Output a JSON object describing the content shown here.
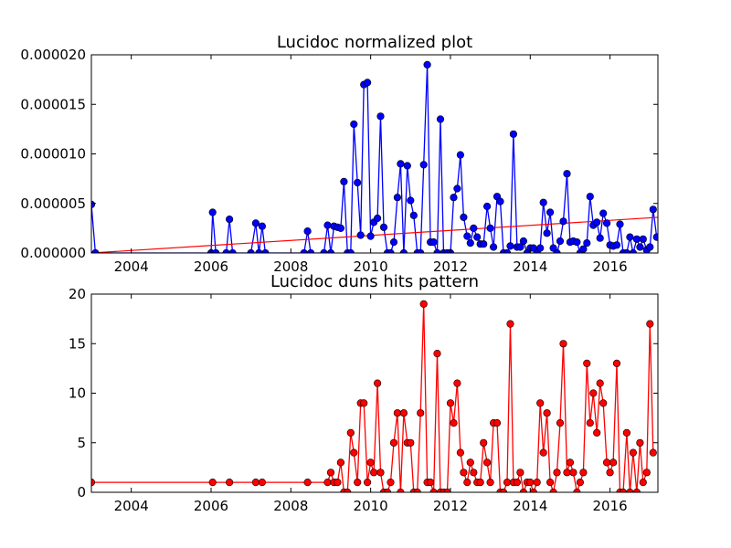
{
  "chart_data": [
    {
      "type": "line",
      "title": "Lucidoc normalized plot",
      "xlabel": "",
      "ylabel": "",
      "xlim": [
        2003.0,
        2017.2
      ],
      "ylim": [
        0,
        2e-05
      ],
      "x_ticks": [
        2004,
        2006,
        2008,
        2010,
        2012,
        2014,
        2016
      ],
      "x_tick_labels": [
        "2004",
        "2006",
        "2008",
        "2010",
        "2012",
        "2014",
        "2016"
      ],
      "y_ticks": [
        0,
        5e-06,
        1e-05,
        1.5e-05,
        2e-05
      ],
      "y_tick_labels": [
        "0.000000",
        "0.000005",
        "0.000010",
        "0.000015",
        "0.000020"
      ],
      "grid": false,
      "colors": {
        "line": "#0000ff",
        "marker": "#0000ff",
        "trend": "#ff0000"
      },
      "trend_line": {
        "x": [
          2003.0,
          2017.2
        ],
        "y": [
          0.0,
          3.6e-06
        ]
      },
      "series": [
        {
          "points": [
            [
              2003.0,
              4.9e-06
            ],
            [
              2003.1,
              0
            ],
            [
              2006.0,
              0
            ],
            [
              2006.04,
              4.1e-06
            ],
            [
              2006.12,
              0
            ],
            [
              2006.38,
              0
            ],
            [
              2006.46,
              3.4e-06
            ],
            [
              2006.54,
              0
            ],
            [
              2007.0,
              0
            ],
            [
              2007.12,
              3e-06
            ],
            [
              2007.2,
              0
            ],
            [
              2007.28,
              2.7e-06
            ],
            [
              2007.36,
              0
            ],
            [
              2008.33,
              0
            ],
            [
              2008.42,
              2.2e-06
            ],
            [
              2008.5,
              0
            ],
            [
              2008.83,
              0
            ],
            [
              2008.92,
              2.8e-06
            ],
            [
              2009.0,
              0
            ],
            [
              2009.08,
              2.7e-06
            ],
            [
              2009.17,
              2.6e-06
            ],
            [
              2009.25,
              2.5e-06
            ],
            [
              2009.33,
              7.2e-06
            ],
            [
              2009.42,
              0
            ],
            [
              2009.5,
              0
            ],
            [
              2009.58,
              1.3e-05
            ],
            [
              2009.67,
              7.1e-06
            ],
            [
              2009.75,
              1.8e-06
            ],
            [
              2009.83,
              1.7e-05
            ],
            [
              2009.92,
              1.72e-05
            ],
            [
              2010.0,
              1.7e-06
            ],
            [
              2010.08,
              3.1e-06
            ],
            [
              2010.17,
              3.5e-06
            ],
            [
              2010.25,
              1.38e-05
            ],
            [
              2010.33,
              2.6e-06
            ],
            [
              2010.42,
              0
            ],
            [
              2010.5,
              0
            ],
            [
              2010.58,
              1.1e-06
            ],
            [
              2010.67,
              5.6e-06
            ],
            [
              2010.75,
              9e-06
            ],
            [
              2010.83,
              0
            ],
            [
              2010.92,
              8.8e-06
            ],
            [
              2011.0,
              5.3e-06
            ],
            [
              2011.08,
              3.8e-06
            ],
            [
              2011.17,
              0
            ],
            [
              2011.25,
              0
            ],
            [
              2011.33,
              8.9e-06
            ],
            [
              2011.42,
              1.9e-05
            ],
            [
              2011.5,
              1.1e-06
            ],
            [
              2011.58,
              1.1e-06
            ],
            [
              2011.67,
              0
            ],
            [
              2011.75,
              1.35e-05
            ],
            [
              2011.83,
              0
            ],
            [
              2011.92,
              0
            ],
            [
              2012.0,
              0
            ],
            [
              2012.08,
              5.6e-06
            ],
            [
              2012.17,
              6.5e-06
            ],
            [
              2012.25,
              9.9e-06
            ],
            [
              2012.33,
              3.6e-06
            ],
            [
              2012.42,
              1.7e-06
            ],
            [
              2012.5,
              1e-06
            ],
            [
              2012.58,
              2.5e-06
            ],
            [
              2012.67,
              1.6e-06
            ],
            [
              2012.75,
              9e-07
            ],
            [
              2012.83,
              9e-07
            ],
            [
              2012.92,
              4.7e-06
            ],
            [
              2013.0,
              2.5e-06
            ],
            [
              2013.08,
              6e-07
            ],
            [
              2013.17,
              5.7e-06
            ],
            [
              2013.25,
              5.2e-06
            ],
            [
              2013.33,
              0
            ],
            [
              2013.42,
              0
            ],
            [
              2013.5,
              7e-07
            ],
            [
              2013.58,
              1.2e-05
            ],
            [
              2013.67,
              6e-07
            ],
            [
              2013.75,
              6e-07
            ],
            [
              2013.83,
              1.2e-06
            ],
            [
              2013.92,
              0
            ],
            [
              2014.0,
              5e-07
            ],
            [
              2014.08,
              5e-07
            ],
            [
              2014.17,
              0
            ],
            [
              2014.25,
              5e-07
            ],
            [
              2014.33,
              5.1e-06
            ],
            [
              2014.42,
              2e-06
            ],
            [
              2014.5,
              4.1e-06
            ],
            [
              2014.58,
              5e-07
            ],
            [
              2014.67,
              0
            ],
            [
              2014.75,
              1.2e-06
            ],
            [
              2014.83,
              3.2e-06
            ],
            [
              2014.92,
              8e-06
            ],
            [
              2015.0,
              1.1e-06
            ],
            [
              2015.08,
              1.2e-06
            ],
            [
              2015.17,
              1.1e-06
            ],
            [
              2015.25,
              0
            ],
            [
              2015.33,
              4e-07
            ],
            [
              2015.42,
              1e-06
            ],
            [
              2015.5,
              5.7e-06
            ],
            [
              2015.58,
              2.8e-06
            ],
            [
              2015.67,
              3.1e-06
            ],
            [
              2015.75,
              1.5e-06
            ],
            [
              2015.83,
              4e-06
            ],
            [
              2015.92,
              3e-06
            ],
            [
              2016.0,
              8e-07
            ],
            [
              2016.08,
              7e-07
            ],
            [
              2016.17,
              8e-07
            ],
            [
              2016.25,
              2.9e-06
            ],
            [
              2016.33,
              0
            ],
            [
              2016.42,
              0
            ],
            [
              2016.5,
              1.6e-06
            ],
            [
              2016.58,
              0
            ],
            [
              2016.67,
              1.4e-06
            ],
            [
              2016.75,
              6e-07
            ],
            [
              2016.83,
              1.4e-06
            ],
            [
              2016.92,
              3e-07
            ],
            [
              2017.0,
              6e-07
            ],
            [
              2017.08,
              4.4e-06
            ],
            [
              2017.17,
              1.6e-06
            ]
          ]
        }
      ]
    },
    {
      "type": "line",
      "title": "Lucidoc duns hits pattern",
      "xlabel": "",
      "ylabel": "",
      "xlim": [
        2003.0,
        2017.2
      ],
      "ylim": [
        0,
        20
      ],
      "x_ticks": [
        2004,
        2006,
        2008,
        2010,
        2012,
        2014,
        2016
      ],
      "x_tick_labels": [
        "2004",
        "2006",
        "2008",
        "2010",
        "2012",
        "2014",
        "2016"
      ],
      "y_ticks": [
        0,
        5,
        10,
        15,
        20
      ],
      "y_tick_labels": [
        "0",
        "5",
        "10",
        "15",
        "20"
      ],
      "grid": false,
      "colors": {
        "line": "#ff0000",
        "marker": "#ff0000"
      },
      "series": [
        {
          "points": [
            [
              2003.0,
              1
            ],
            [
              2006.04,
              1
            ],
            [
              2006.46,
              1
            ],
            [
              2007.12,
              1
            ],
            [
              2007.28,
              1
            ],
            [
              2008.42,
              1
            ],
            [
              2008.92,
              1
            ],
            [
              2009.0,
              2
            ],
            [
              2009.08,
              1
            ],
            [
              2009.17,
              1
            ],
            [
              2009.25,
              3
            ],
            [
              2009.33,
              0
            ],
            [
              2009.42,
              0
            ],
            [
              2009.5,
              6
            ],
            [
              2009.58,
              4
            ],
            [
              2009.67,
              1
            ],
            [
              2009.75,
              9
            ],
            [
              2009.83,
              9
            ],
            [
              2009.92,
              1
            ],
            [
              2010.0,
              3
            ],
            [
              2010.08,
              2
            ],
            [
              2010.17,
              11
            ],
            [
              2010.25,
              2
            ],
            [
              2010.33,
              0
            ],
            [
              2010.42,
              0
            ],
            [
              2010.5,
              1
            ],
            [
              2010.58,
              5
            ],
            [
              2010.67,
              8
            ],
            [
              2010.75,
              0
            ],
            [
              2010.83,
              8
            ],
            [
              2010.92,
              5
            ],
            [
              2011.0,
              5
            ],
            [
              2011.08,
              0
            ],
            [
              2011.17,
              0
            ],
            [
              2011.25,
              8
            ],
            [
              2011.33,
              19
            ],
            [
              2011.42,
              1
            ],
            [
              2011.5,
              1
            ],
            [
              2011.58,
              0
            ],
            [
              2011.67,
              14
            ],
            [
              2011.75,
              0
            ],
            [
              2011.83,
              0
            ],
            [
              2011.92,
              0
            ],
            [
              2012.0,
              9
            ],
            [
              2012.08,
              7
            ],
            [
              2012.17,
              11
            ],
            [
              2012.25,
              4
            ],
            [
              2012.33,
              2
            ],
            [
              2012.42,
              1
            ],
            [
              2012.5,
              3
            ],
            [
              2012.58,
              2
            ],
            [
              2012.67,
              1
            ],
            [
              2012.75,
              1
            ],
            [
              2012.83,
              5
            ],
            [
              2012.92,
              3
            ],
            [
              2013.0,
              1
            ],
            [
              2013.08,
              7
            ],
            [
              2013.17,
              7
            ],
            [
              2013.25,
              0
            ],
            [
              2013.33,
              0
            ],
            [
              2013.42,
              1
            ],
            [
              2013.5,
              17
            ],
            [
              2013.58,
              1
            ],
            [
              2013.67,
              1
            ],
            [
              2013.75,
              2
            ],
            [
              2013.83,
              0
            ],
            [
              2013.92,
              1
            ],
            [
              2014.0,
              1
            ],
            [
              2014.08,
              0
            ],
            [
              2014.17,
              1
            ],
            [
              2014.25,
              9
            ],
            [
              2014.33,
              4
            ],
            [
              2014.42,
              8
            ],
            [
              2014.5,
              1
            ],
            [
              2014.58,
              0
            ],
            [
              2014.67,
              2
            ],
            [
              2014.75,
              7
            ],
            [
              2014.83,
              15
            ],
            [
              2014.92,
              2
            ],
            [
              2015.0,
              3
            ],
            [
              2015.08,
              2
            ],
            [
              2015.17,
              0
            ],
            [
              2015.25,
              1
            ],
            [
              2015.33,
              2
            ],
            [
              2015.42,
              13
            ],
            [
              2015.5,
              7
            ],
            [
              2015.58,
              10
            ],
            [
              2015.67,
              6
            ],
            [
              2015.75,
              11
            ],
            [
              2015.83,
              9
            ],
            [
              2015.92,
              3
            ],
            [
              2016.0,
              2
            ],
            [
              2016.08,
              3
            ],
            [
              2016.17,
              13
            ],
            [
              2016.25,
              0
            ],
            [
              2016.33,
              0
            ],
            [
              2016.42,
              6
            ],
            [
              2016.5,
              0
            ],
            [
              2016.58,
              4
            ],
            [
              2016.67,
              0
            ],
            [
              2016.75,
              5
            ],
            [
              2016.83,
              1
            ],
            [
              2016.92,
              2
            ],
            [
              2017.0,
              17
            ],
            [
              2017.08,
              4
            ]
          ]
        }
      ]
    }
  ]
}
